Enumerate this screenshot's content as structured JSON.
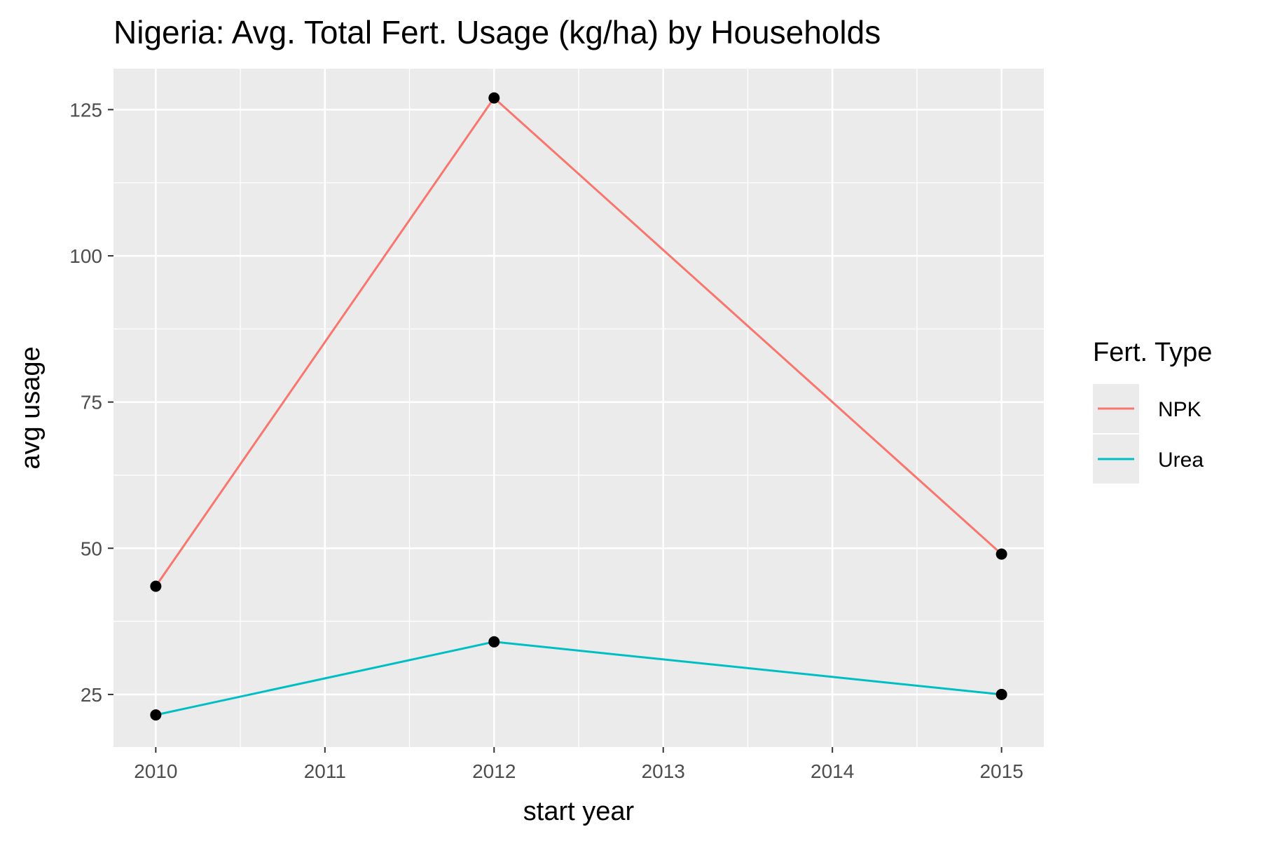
{
  "chart_data": {
    "type": "line",
    "title": "Nigeria: Avg. Total Fert. Usage (kg/ha) by Households",
    "xlabel": "start year",
    "ylabel": "avg usage",
    "x_ticks": [
      "2010",
      "2011",
      "2012",
      "2013",
      "2014",
      "2015"
    ],
    "y_ticks": [
      "25",
      "50",
      "75",
      "100",
      "125"
    ],
    "xlim": [
      2009.75,
      2015.25
    ],
    "ylim": [
      16,
      132
    ],
    "grid": true,
    "legend": {
      "title": "Fert. Type",
      "position": "right"
    },
    "series": [
      {
        "name": "NPK",
        "color": "#F8766D",
        "x": [
          2010,
          2012,
          2015
        ],
        "y": [
          43.5,
          127,
          49
        ]
      },
      {
        "name": "Urea",
        "color": "#00BFC4",
        "x": [
          2010,
          2012,
          2015
        ],
        "y": [
          21.5,
          34,
          25
        ]
      }
    ],
    "point_color": "#000000",
    "panel_background": "#EBEBEB",
    "grid_color": "#FFFFFF"
  }
}
